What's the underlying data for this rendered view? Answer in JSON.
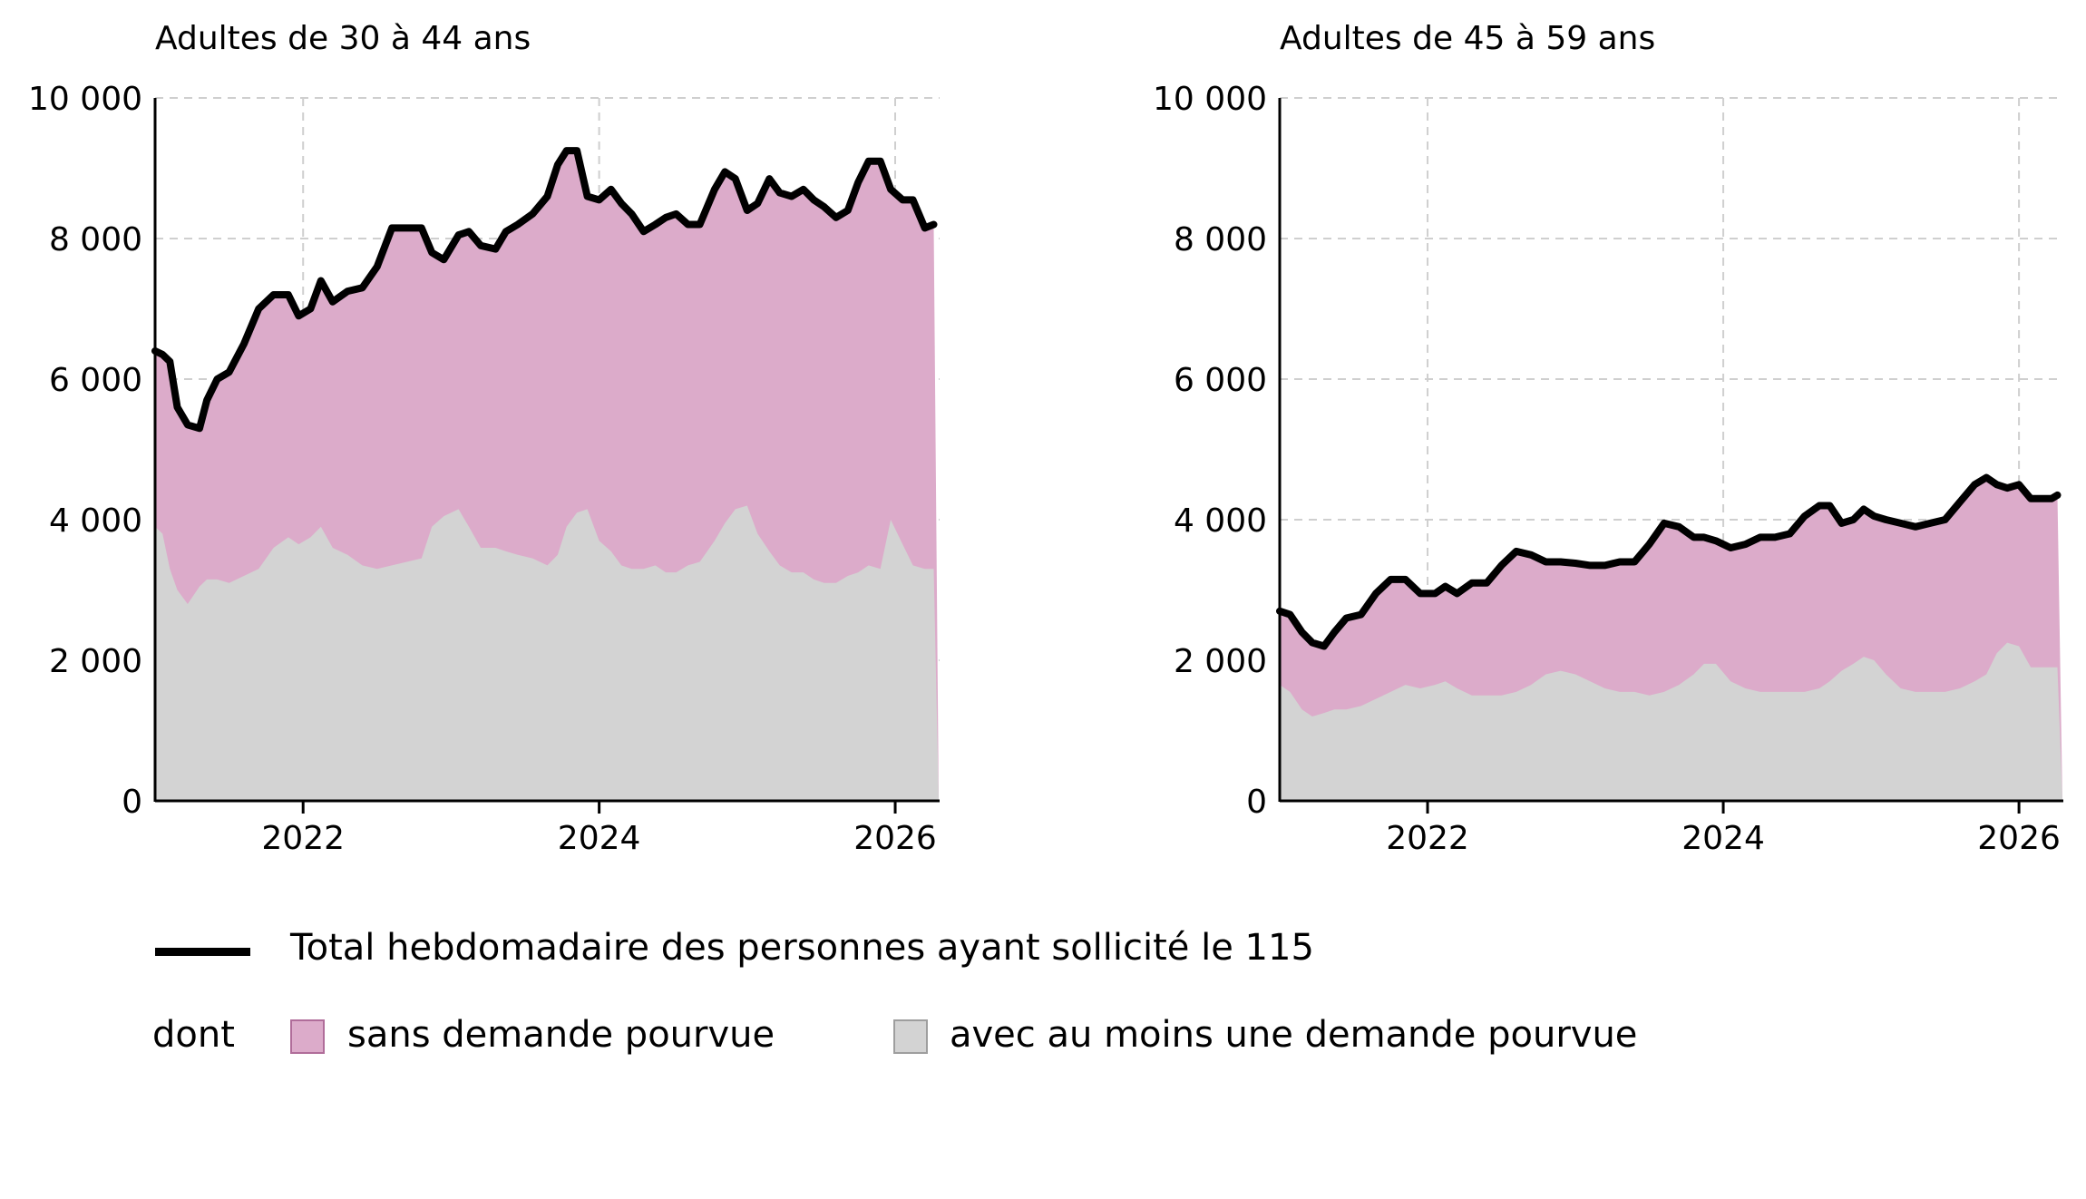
{
  "colors": {
    "total_line": "#000000",
    "sans_demande": "#dcabca",
    "sans_demande_border": "#b06d9a",
    "avec_demande": "#d3d3d3",
    "avec_demande_border": "#9e9e9e",
    "grid": "#cfcfcf"
  },
  "legend": {
    "total_label": "Total hebdomadaire des personnes ayant sollicité le 115",
    "dont_label": "dont",
    "sans_label": "sans demande pourvue",
    "avec_label": "avec au moins une demande pourvue"
  },
  "chart_data": [
    {
      "type": "area",
      "title": "Adultes de 30 à 44 ans",
      "xlabel": "",
      "ylabel": "",
      "xlim": [
        2021.0,
        2026.3
      ],
      "ylim": [
        0,
        10000
      ],
      "yticks": [
        0,
        2000,
        4000,
        6000,
        8000,
        10000
      ],
      "ytick_labels": [
        "0",
        "2 000",
        "4 000",
        "6 000",
        "8 000",
        "10 000"
      ],
      "xticks": [
        2022,
        2024,
        2026
      ],
      "xtick_labels": [
        "2022",
        "2024",
        "2026"
      ],
      "grid": true,
      "series": [
        {
          "name": "Total hebdomadaire des personnes ayant sollicité le 115",
          "x": [
            2021.0,
            2021.05,
            2021.1,
            2021.15,
            2021.22,
            2021.3,
            2021.35,
            2021.42,
            2021.5,
            2021.6,
            2021.7,
            2021.8,
            2021.9,
            2021.97,
            2022.05,
            2022.12,
            2022.2,
            2022.3,
            2022.4,
            2022.5,
            2022.6,
            2022.7,
            2022.8,
            2022.87,
            2022.95,
            2023.05,
            2023.12,
            2023.2,
            2023.3,
            2023.37,
            2023.45,
            2023.55,
            2023.65,
            2023.72,
            2023.78,
            2023.85,
            2023.92,
            2024.0,
            2024.08,
            2024.15,
            2024.22,
            2024.3,
            2024.38,
            2024.45,
            2024.52,
            2024.6,
            2024.68,
            2024.78,
            2024.85,
            2024.92,
            2025.0,
            2025.07,
            2025.15,
            2025.22,
            2025.3,
            2025.38,
            2025.45,
            2025.52,
            2025.6,
            2025.68,
            2025.75,
            2025.82,
            2025.9,
            2025.97,
            2026.05,
            2026.12,
            2026.2,
            2026.26
          ],
          "values": [
            6400,
            6350,
            6250,
            5600,
            5350,
            5300,
            5700,
            6000,
            6100,
            6500,
            7000,
            7200,
            7200,
            6900,
            7000,
            7400,
            7100,
            7250,
            7300,
            7600,
            8150,
            8150,
            8150,
            7800,
            7700,
            8050,
            8100,
            7900,
            7850,
            8100,
            8200,
            8350,
            8600,
            9050,
            9250,
            9250,
            8600,
            8550,
            8700,
            8500,
            8350,
            8100,
            8200,
            8300,
            8350,
            8200,
            8200,
            8700,
            8950,
            8850,
            8400,
            8500,
            8850,
            8650,
            8600,
            8700,
            8550,
            8450,
            8300,
            8400,
            8800,
            9100,
            9100,
            8700,
            8550,
            8550,
            8150,
            8200
          ]
        },
        {
          "name": "avec au moins une demande pourvue",
          "x": [
            2021.0,
            2021.05,
            2021.1,
            2021.15,
            2021.22,
            2021.3,
            2021.35,
            2021.42,
            2021.5,
            2021.6,
            2021.7,
            2021.8,
            2021.9,
            2021.97,
            2022.05,
            2022.12,
            2022.2,
            2022.3,
            2022.4,
            2022.5,
            2022.6,
            2022.7,
            2022.8,
            2022.87,
            2022.95,
            2023.05,
            2023.12,
            2023.2,
            2023.3,
            2023.37,
            2023.45,
            2023.55,
            2023.65,
            2023.72,
            2023.78,
            2023.85,
            2023.92,
            2024.0,
            2024.08,
            2024.15,
            2024.22,
            2024.3,
            2024.38,
            2024.45,
            2024.52,
            2024.6,
            2024.68,
            2024.78,
            2024.85,
            2024.92,
            2025.0,
            2025.07,
            2025.15,
            2025.22,
            2025.3,
            2025.38,
            2025.45,
            2025.52,
            2025.6,
            2025.68,
            2025.75,
            2025.82,
            2025.9,
            2025.97,
            2026.05,
            2026.12,
            2026.2,
            2026.26
          ],
          "values": [
            3900,
            3800,
            3300,
            3000,
            2800,
            3050,
            3150,
            3150,
            3100,
            3200,
            3300,
            3600,
            3750,
            3650,
            3750,
            3900,
            3600,
            3500,
            3350,
            3300,
            3350,
            3400,
            3450,
            3900,
            4050,
            4150,
            3900,
            3600,
            3600,
            3550,
            3500,
            3450,
            3350,
            3500,
            3900,
            4100,
            4150,
            3700,
            3550,
            3350,
            3300,
            3300,
            3350,
            3250,
            3250,
            3350,
            3400,
            3700,
            3950,
            4150,
            4200,
            3800,
            3550,
            3350,
            3250,
            3250,
            3150,
            3100,
            3100,
            3200,
            3250,
            3350,
            3300,
            4000,
            3650,
            3350,
            3300,
            3300
          ]
        }
      ]
    },
    {
      "type": "area",
      "title": "Adultes de 45 à 59 ans",
      "xlabel": "",
      "ylabel": "",
      "xlim": [
        2021.0,
        2026.3
      ],
      "ylim": [
        0,
        10000
      ],
      "yticks": [
        0,
        2000,
        4000,
        6000,
        8000,
        10000
      ],
      "ytick_labels": [
        "0",
        "2 000",
        "4 000",
        "6 000",
        "8 000",
        "10 000"
      ],
      "xticks": [
        2022,
        2024,
        2026
      ],
      "xtick_labels": [
        "2022",
        "2024",
        "2026"
      ],
      "grid": true,
      "series": [
        {
          "name": "Total hebdomadaire des personnes ayant sollicité le 115",
          "x": [
            2021.0,
            2021.07,
            2021.15,
            2021.22,
            2021.3,
            2021.37,
            2021.45,
            2021.55,
            2021.65,
            2021.75,
            2021.85,
            2021.95,
            2022.05,
            2022.12,
            2022.2,
            2022.3,
            2022.4,
            2022.5,
            2022.6,
            2022.7,
            2022.8,
            2022.9,
            2023.0,
            2023.1,
            2023.2,
            2023.3,
            2023.4,
            2023.5,
            2023.6,
            2023.7,
            2023.8,
            2023.87,
            2023.95,
            2024.05,
            2024.15,
            2024.25,
            2024.35,
            2024.45,
            2024.55,
            2024.65,
            2024.72,
            2024.8,
            2024.88,
            2024.95,
            2025.02,
            2025.1,
            2025.2,
            2025.3,
            2025.4,
            2025.5,
            2025.6,
            2025.7,
            2025.78,
            2025.85,
            2025.92,
            2026.0,
            2026.08,
            2026.15,
            2026.22,
            2026.26
          ],
          "values": [
            2700,
            2650,
            2400,
            2250,
            2200,
            2400,
            2600,
            2650,
            2950,
            3150,
            3150,
            2950,
            2950,
            3050,
            2950,
            3100,
            3100,
            3350,
            3550,
            3500,
            3400,
            3400,
            3380,
            3350,
            3350,
            3400,
            3400,
            3650,
            3950,
            3900,
            3750,
            3750,
            3700,
            3600,
            3650,
            3750,
            3750,
            3800,
            4050,
            4200,
            4200,
            3950,
            4000,
            4150,
            4050,
            4000,
            3950,
            3900,
            3950,
            4000,
            4250,
            4500,
            4600,
            4500,
            4450,
            4500,
            4300,
            4300,
            4300,
            4350
          ]
        },
        {
          "name": "avec au moins une demande pourvue",
          "x": [
            2021.0,
            2021.07,
            2021.15,
            2021.22,
            2021.3,
            2021.37,
            2021.45,
            2021.55,
            2021.65,
            2021.75,
            2021.85,
            2021.95,
            2022.05,
            2022.12,
            2022.2,
            2022.3,
            2022.4,
            2022.5,
            2022.6,
            2022.7,
            2022.8,
            2022.9,
            2023.0,
            2023.1,
            2023.2,
            2023.3,
            2023.4,
            2023.5,
            2023.6,
            2023.7,
            2023.8,
            2023.87,
            2023.95,
            2024.05,
            2024.15,
            2024.25,
            2024.35,
            2024.45,
            2024.55,
            2024.65,
            2024.72,
            2024.8,
            2024.88,
            2024.95,
            2025.02,
            2025.1,
            2025.2,
            2025.3,
            2025.4,
            2025.5,
            2025.6,
            2025.7,
            2025.78,
            2025.85,
            2025.92,
            2026.0,
            2026.08,
            2026.15,
            2026.22,
            2026.26
          ],
          "values": [
            1650,
            1550,
            1300,
            1200,
            1250,
            1300,
            1300,
            1350,
            1450,
            1550,
            1650,
            1600,
            1650,
            1700,
            1600,
            1500,
            1500,
            1500,
            1550,
            1650,
            1800,
            1850,
            1800,
            1700,
            1600,
            1550,
            1550,
            1500,
            1550,
            1650,
            1800,
            1950,
            1950,
            1700,
            1600,
            1550,
            1550,
            1550,
            1550,
            1600,
            1700,
            1850,
            1950,
            2050,
            2000,
            1800,
            1600,
            1550,
            1550,
            1550,
            1600,
            1700,
            1800,
            2100,
            2250,
            2200,
            1900,
            1900,
            1900,
            1900
          ]
        }
      ]
    }
  ]
}
